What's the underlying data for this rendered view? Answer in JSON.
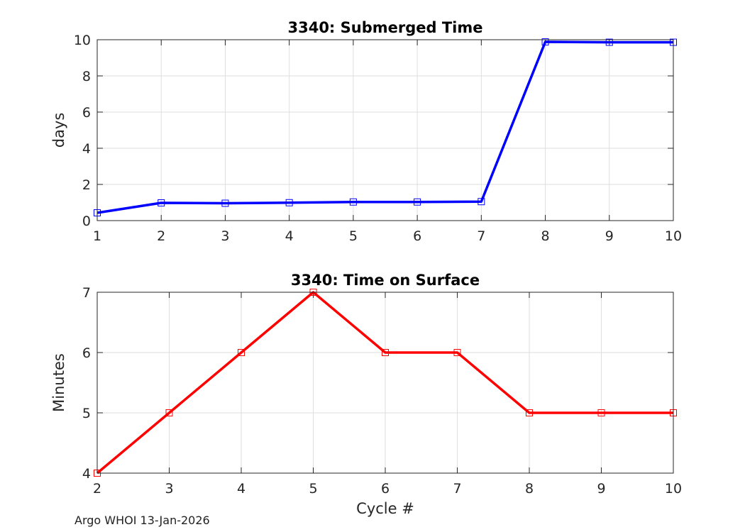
{
  "footer_text": "Argo WHOI 13-Jan-2026",
  "chart_data": [
    {
      "type": "line",
      "title": "3340: Submerged Time",
      "xlabel": "",
      "ylabel": "days",
      "xlim": [
        1,
        10
      ],
      "ylim": [
        0,
        10
      ],
      "x_ticks": [
        1,
        2,
        3,
        4,
        5,
        6,
        7,
        8,
        9,
        10
      ],
      "y_ticks": [
        0,
        2,
        4,
        6,
        8,
        10
      ],
      "grid": true,
      "marker": "square",
      "color": "#0000ff",
      "x": [
        1,
        2,
        3,
        4,
        5,
        6,
        7,
        8,
        9,
        10
      ],
      "values": [
        0.43,
        0.98,
        0.96,
        0.99,
        1.03,
        1.03,
        1.05,
        9.88,
        9.86,
        9.86
      ]
    },
    {
      "type": "line",
      "title": "3340: Time on Surface",
      "xlabel": "Cycle #",
      "ylabel": "Minutes",
      "xlim": [
        2,
        10
      ],
      "ylim": [
        4,
        7
      ],
      "x_ticks": [
        2,
        3,
        4,
        5,
        6,
        7,
        8,
        9,
        10
      ],
      "y_ticks": [
        4,
        5,
        6,
        7
      ],
      "grid": true,
      "marker": "square",
      "color": "#ff0000",
      "x": [
        2,
        3,
        4,
        5,
        6,
        7,
        8,
        9,
        10
      ],
      "values": [
        4,
        5,
        6,
        7,
        6,
        6,
        5,
        5,
        5
      ]
    }
  ]
}
